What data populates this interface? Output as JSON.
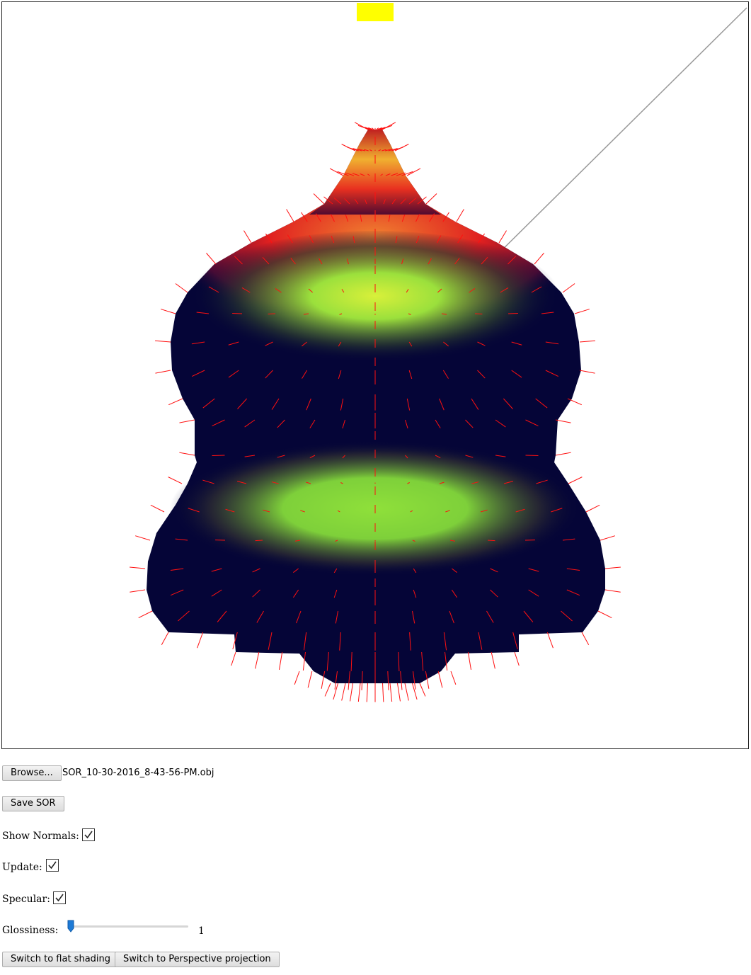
{
  "controls": {
    "browse_label": "Browse...",
    "file_name": "SOR_10-30-2016_8-43-56-PM.obj",
    "save_label": "Save SOR",
    "show_normals_label": "Show Normals:",
    "show_normals_checked": true,
    "update_label": "Update:",
    "update_checked": true,
    "specular_label": "Specular:",
    "specular_checked": true,
    "glossiness_label": "Glossiness:",
    "glossiness_value": "1",
    "flat_shading_label": "Switch to flat shading",
    "perspective_label": "Switch to Perspective projection"
  },
  "viewport": {
    "shape_color": "#050537",
    "normal_color": "#ff0000",
    "highlight_color": "#8fe03a",
    "rim_color": "#e02020",
    "light_marker_color": "#ffff00",
    "light_ray_color": "#999999"
  }
}
